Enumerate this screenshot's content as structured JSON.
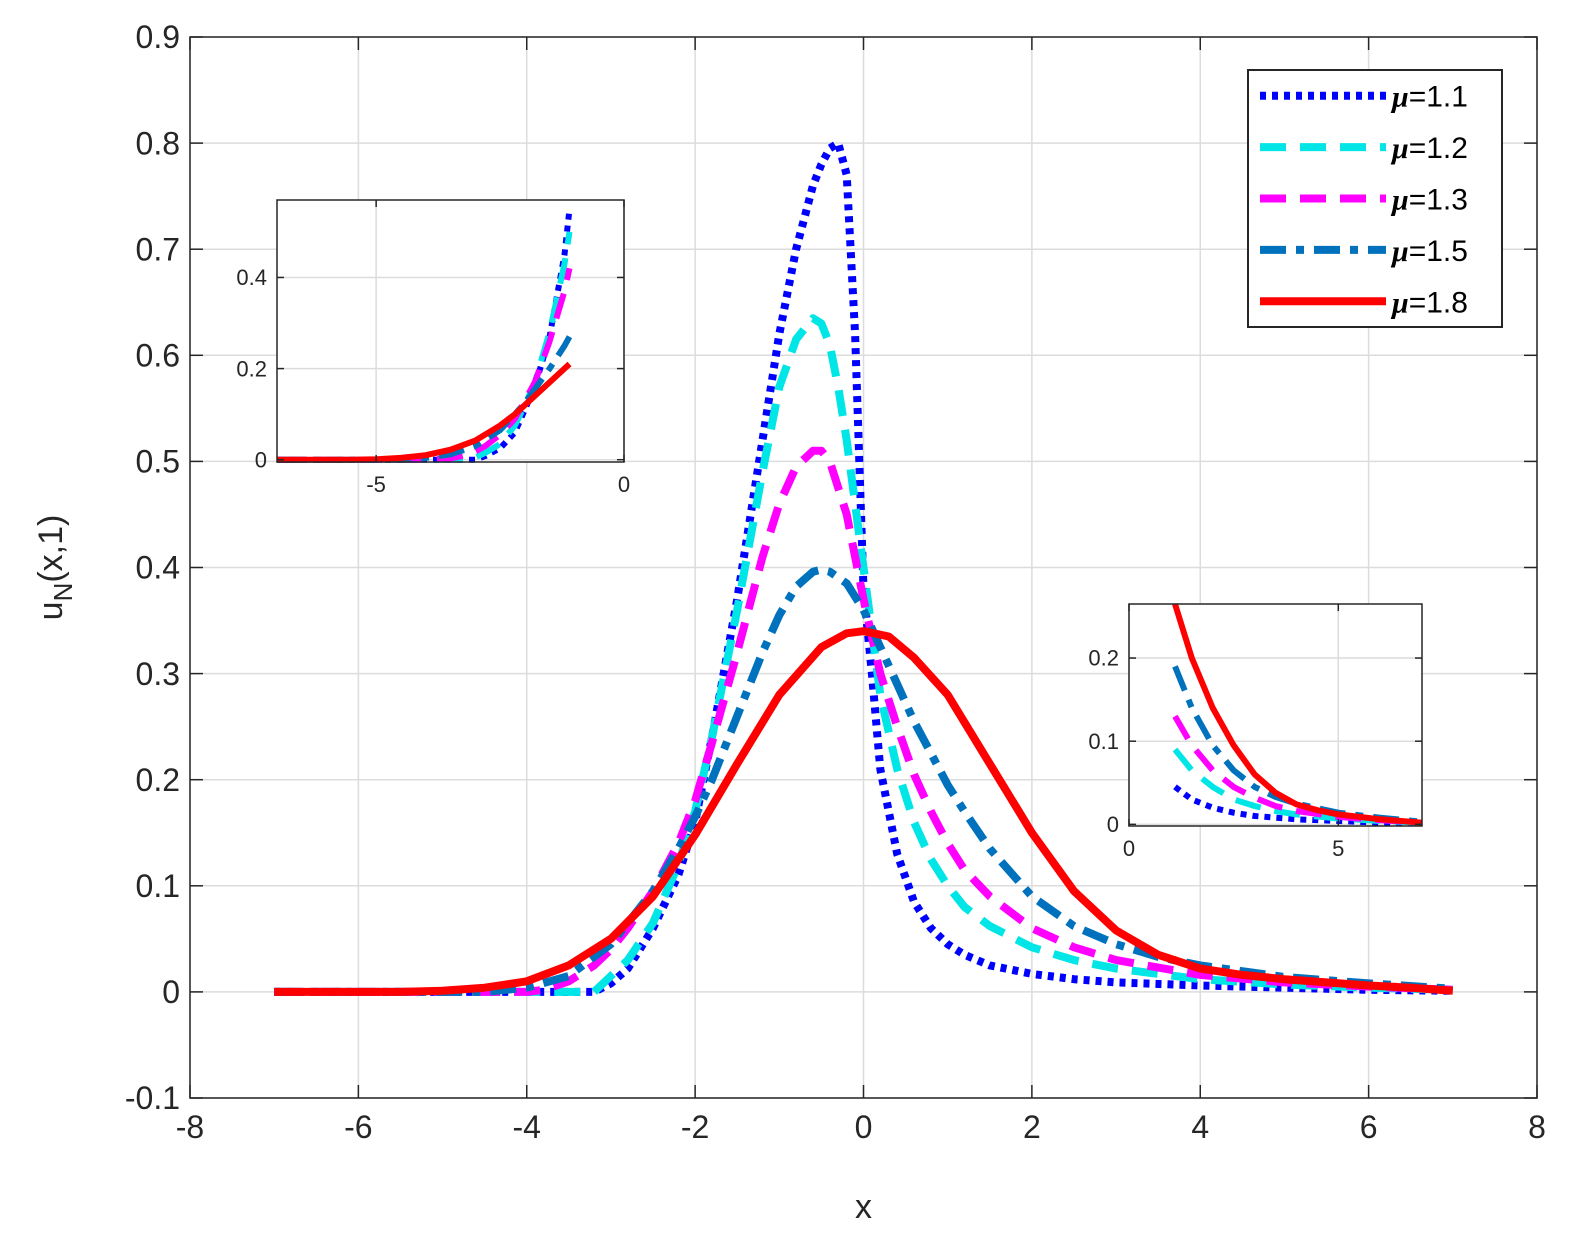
{
  "chart_data": {
    "type": "line",
    "title": "",
    "xlabel": "x",
    "ylabel": "u",
    "ylabel_sub": "N",
    "ylabel_args": "(x,1)",
    "xlim": [
      -8,
      8
    ],
    "ylim": [
      -0.1,
      0.9
    ],
    "xticks": [
      -8,
      -6,
      -4,
      -2,
      0,
      2,
      4,
      6,
      8
    ],
    "yticks": [
      -0.1,
      0,
      0.1,
      0.2,
      0.3,
      0.4,
      0.5,
      0.6,
      0.7,
      0.8,
      0.9
    ],
    "x_tick_labels": [
      "-8",
      "-6",
      "-4",
      "-2",
      "0",
      "2",
      "4",
      "6",
      "8"
    ],
    "y_tick_labels": [
      "-0.1",
      "0",
      "0.1",
      "0.2",
      "0.3",
      "0.4",
      "0.5",
      "0.6",
      "0.7",
      "0.8",
      "0.9"
    ],
    "grid": true,
    "legend_position": "top-right",
    "series": [
      {
        "name": "μ=1.1",
        "legend_symbol": "μ",
        "legend_value": "=1.1",
        "color": "#0000ff",
        "style": "dotted",
        "x": [
          -7,
          -5,
          -4,
          -3.5,
          -3.2,
          -3,
          -2.8,
          -2.5,
          -2.2,
          -2,
          -1.8,
          -1.5,
          -1.2,
          -1,
          -0.8,
          -0.6,
          -0.5,
          -0.4,
          -0.3,
          -0.2,
          -0.1,
          0,
          0.1,
          0.2,
          0.4,
          0.6,
          0.8,
          1,
          1.2,
          1.5,
          2,
          2.5,
          3,
          4,
          5,
          6,
          7
        ],
        "y": [
          0,
          0,
          0,
          0,
          0,
          0.008,
          0.022,
          0.06,
          0.11,
          0.16,
          0.24,
          0.37,
          0.52,
          0.62,
          0.7,
          0.76,
          0.78,
          0.795,
          0.8,
          0.77,
          0.62,
          0.38,
          0.3,
          0.21,
          0.13,
          0.085,
          0.06,
          0.045,
          0.035,
          0.025,
          0.017,
          0.012,
          0.009,
          0.006,
          0.004,
          0.002,
          0.001
        ]
      },
      {
        "name": "μ=1.2",
        "legend_symbol": "μ",
        "legend_value": "=1.2",
        "color": "#00e5e5",
        "style": "dashed",
        "x": [
          -7,
          -4,
          -3.5,
          -3.2,
          -3,
          -2.8,
          -2.5,
          -2.2,
          -2,
          -1.8,
          -1.5,
          -1.2,
          -1,
          -0.8,
          -0.6,
          -0.5,
          -0.4,
          -0.3,
          -0.2,
          0,
          0.2,
          0.4,
          0.6,
          0.8,
          1,
          1.2,
          1.5,
          2,
          2.5,
          3,
          4,
          5,
          6,
          7
        ],
        "y": [
          0,
          0,
          0,
          0,
          0.015,
          0.03,
          0.065,
          0.12,
          0.17,
          0.24,
          0.36,
          0.49,
          0.57,
          0.615,
          0.635,
          0.63,
          0.61,
          0.57,
          0.52,
          0.4,
          0.28,
          0.21,
          0.16,
          0.125,
          0.1,
          0.08,
          0.062,
          0.042,
          0.03,
          0.022,
          0.012,
          0.007,
          0.004,
          0.002
        ]
      },
      {
        "name": "μ=1.3",
        "legend_symbol": "μ",
        "legend_value": "=1.3",
        "color": "#ff00ff",
        "style": "dashed",
        "x": [
          -7,
          -4,
          -3.8,
          -3.5,
          -3.2,
          -3,
          -2.8,
          -2.5,
          -2.2,
          -2,
          -1.8,
          -1.5,
          -1.2,
          -1,
          -0.8,
          -0.6,
          -0.5,
          -0.4,
          -0.2,
          0,
          0.2,
          0.4,
          0.6,
          0.8,
          1,
          1.2,
          1.5,
          2,
          2.5,
          3,
          4,
          5,
          6,
          7
        ],
        "y": [
          0,
          0,
          0.002,
          0.01,
          0.025,
          0.04,
          0.06,
          0.095,
          0.14,
          0.18,
          0.235,
          0.32,
          0.41,
          0.46,
          0.495,
          0.51,
          0.51,
          0.5,
          0.45,
          0.37,
          0.3,
          0.25,
          0.205,
          0.17,
          0.14,
          0.115,
          0.09,
          0.06,
          0.042,
          0.03,
          0.016,
          0.009,
          0.005,
          0.002
        ]
      },
      {
        "name": "μ=1.5",
        "legend_symbol": "μ",
        "legend_value": "=1.5",
        "color": "#0072bd",
        "style": "dashdot",
        "x": [
          -7,
          -4.5,
          -4,
          -3.5,
          -3,
          -2.5,
          -2.2,
          -2,
          -1.8,
          -1.5,
          -1.2,
          -1,
          -0.8,
          -0.6,
          -0.5,
          -0.4,
          -0.2,
          0,
          0.2,
          0.4,
          0.6,
          0.8,
          1,
          1.2,
          1.5,
          2,
          2.5,
          3,
          3.5,
          4,
          5,
          6,
          7
        ],
        "y": [
          0,
          0,
          0.004,
          0.015,
          0.045,
          0.095,
          0.135,
          0.165,
          0.2,
          0.26,
          0.32,
          0.355,
          0.382,
          0.396,
          0.398,
          0.396,
          0.385,
          0.36,
          0.325,
          0.29,
          0.255,
          0.225,
          0.195,
          0.17,
          0.135,
          0.09,
          0.062,
          0.045,
          0.033,
          0.025,
          0.014,
          0.008,
          0.003
        ]
      },
      {
        "name": "μ=1.8",
        "legend_symbol": "μ",
        "legend_value": "=1.8",
        "color": "#ff0000",
        "style": "solid",
        "x": [
          -7,
          -5.5,
          -5,
          -4.5,
          -4,
          -3.5,
          -3,
          -2.5,
          -2,
          -1.5,
          -1,
          -0.5,
          -0.2,
          0,
          0.3,
          0.6,
          1,
          1.5,
          2,
          2.5,
          3,
          3.5,
          4,
          4.5,
          5,
          5.5,
          6,
          6.5,
          7
        ],
        "y": [
          0,
          0,
          0.001,
          0.004,
          0.01,
          0.025,
          0.05,
          0.09,
          0.148,
          0.215,
          0.28,
          0.325,
          0.338,
          0.34,
          0.335,
          0.315,
          0.28,
          0.215,
          0.15,
          0.095,
          0.058,
          0.035,
          0.022,
          0.016,
          0.012,
          0.009,
          0.006,
          0.004,
          0.001
        ]
      }
    ],
    "insets": [
      {
        "position": "left",
        "xlim": [
          -7,
          0
        ],
        "ylim": [
          -0.005,
          0.57
        ],
        "xticks": [
          -5,
          0
        ],
        "yticks": [
          0,
          0.2,
          0.4
        ],
        "x_tick_labels": [
          "-5",
          "0"
        ],
        "y_tick_labels": [
          "0",
          "0.2",
          "0.4"
        ],
        "series": [
          {
            "name": "μ=1.1",
            "x": [
              -7,
              -3.5,
              -3.2,
              -3,
              -2.8,
              -2.5,
              -2.2,
              -2,
              -1.8,
              -1.5,
              -1.2,
              -1.1
            ],
            "y": [
              0,
              0,
              0,
              0,
              0.008,
              0.025,
              0.06,
              0.11,
              0.16,
              0.27,
              0.45,
              0.55
            ]
          },
          {
            "name": "μ=1.2",
            "x": [
              -7,
              -3.5,
              -3.2,
              -3,
              -2.8,
              -2.5,
              -2.2,
              -2,
              -1.8,
              -1.5,
              -1.2,
              -1.1
            ],
            "y": [
              0,
              0,
              0,
              0.005,
              0.015,
              0.035,
              0.075,
              0.12,
              0.17,
              0.28,
              0.43,
              0.5
            ]
          },
          {
            "name": "μ=1.3",
            "x": [
              -7,
              -4,
              -3.5,
              -3.2,
              -3,
              -2.8,
              -2.5,
              -2.2,
              -2,
              -1.8,
              -1.5,
              -1.2,
              -1.1
            ],
            "y": [
              0,
              0,
              0.003,
              0.01,
              0.018,
              0.03,
              0.055,
              0.09,
              0.13,
              0.17,
              0.26,
              0.37,
              0.42
            ]
          },
          {
            "name": "μ=1.5",
            "x": [
              -7,
              -4.5,
              -4,
              -3.5,
              -3,
              -2.5,
              -2.2,
              -2,
              -1.8,
              -1.5,
              -1.2,
              -1.1
            ],
            "y": [
              0,
              0,
              0.004,
              0.012,
              0.03,
              0.065,
              0.1,
              0.125,
              0.155,
              0.2,
              0.25,
              0.27
            ]
          },
          {
            "name": "μ=1.8",
            "x": [
              -7,
              -5.5,
              -5,
              -4.5,
              -4,
              -3.5,
              -3,
              -2.5,
              -2.2,
              -2,
              -1.8,
              -1.5,
              -1.2,
              -1.1
            ],
            "y": [
              0,
              0,
              0.001,
              0.004,
              0.01,
              0.022,
              0.042,
              0.075,
              0.1,
              0.12,
              0.14,
              0.17,
              0.2,
              0.21
            ]
          }
        ]
      },
      {
        "position": "right",
        "xlim": [
          0,
          7
        ],
        "ylim": [
          -0.002,
          0.265
        ],
        "xticks": [
          0,
          5
        ],
        "yticks": [
          0,
          0.1,
          0.2
        ],
        "x_tick_labels": [
          "0",
          "5"
        ],
        "y_tick_labels": [
          "0",
          "0.1",
          "0.2"
        ],
        "series": [
          {
            "name": "μ=1.1",
            "x": [
              1.1,
              1.5,
              2,
              2.5,
              3,
              3.5,
              4,
              5,
              6,
              7
            ],
            "y": [
              0.045,
              0.03,
              0.02,
              0.014,
              0.01,
              0.008,
              0.006,
              0.004,
              0.002,
              0.001
            ]
          },
          {
            "name": "μ=1.2",
            "x": [
              1.1,
              1.5,
              2,
              2.5,
              3,
              3.5,
              4,
              5,
              6,
              7
            ],
            "y": [
              0.09,
              0.065,
              0.045,
              0.03,
              0.022,
              0.016,
              0.012,
              0.007,
              0.004,
              0.002
            ]
          },
          {
            "name": "μ=1.3",
            "x": [
              1.1,
              1.5,
              2,
              2.5,
              3,
              3.5,
              4,
              5,
              6,
              7
            ],
            "y": [
              0.13,
              0.095,
              0.065,
              0.045,
              0.032,
              0.022,
              0.016,
              0.009,
              0.005,
              0.002
            ]
          },
          {
            "name": "μ=1.5",
            "x": [
              1.1,
              1.5,
              2,
              2.5,
              3,
              3.5,
              4,
              5,
              6,
              7
            ],
            "y": [
              0.19,
              0.14,
              0.095,
              0.065,
              0.045,
              0.033,
              0.025,
              0.014,
              0.008,
              0.003
            ]
          },
          {
            "name": "μ=1.8",
            "x": [
              1.1,
              1.5,
              2,
              2.5,
              3,
              3.5,
              4,
              4.5,
              5,
              6,
              7
            ],
            "y": [
              0.265,
              0.2,
              0.14,
              0.095,
              0.06,
              0.038,
              0.024,
              0.017,
              0.012,
              0.006,
              0.002
            ]
          }
        ]
      }
    ]
  }
}
